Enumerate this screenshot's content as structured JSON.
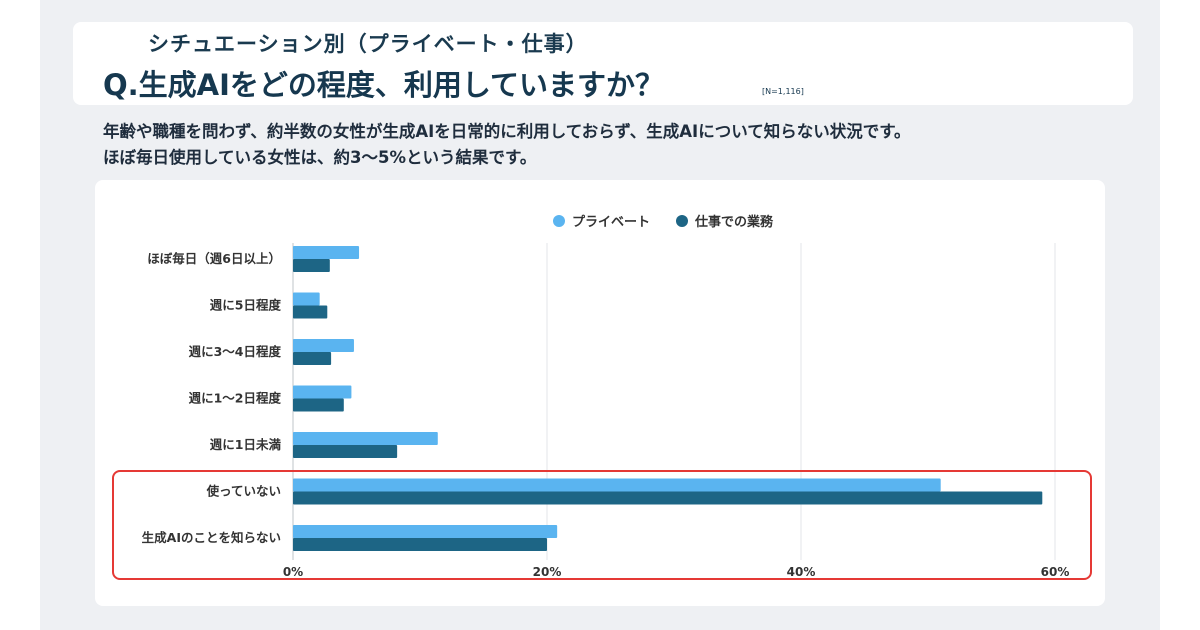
{
  "header": {
    "subtitle": "シチュエーション別（プライベート・仕事）",
    "question": "Q.生成AIをどの程度、利用していますか？",
    "sample_note": "[N=1,116]"
  },
  "description": {
    "line1": "年齢や職種を問わず、約半数の女性が生成AIを日常的に利用しておらず、生成AIについて知らない状況です。",
    "line2": "ほぼ毎日使用している女性は、約3〜5%という結果です。"
  },
  "colors": {
    "private": "#5ab4f0",
    "work": "#1d6585",
    "highlight": "#e53935",
    "grid": "#e3e6ea"
  },
  "chart_data": {
    "type": "bar",
    "orientation": "horizontal",
    "categories": [
      "ほぼ毎日（週6日以上）",
      "週に5日程度",
      "週に3～4日程度",
      "週に1～2日程度",
      "週に1日未満",
      "使っていない",
      "生成AIのことを知らない"
    ],
    "series": [
      {
        "name": "プライベート",
        "values": [
          5.2,
          2.1,
          4.8,
          4.6,
          11.4,
          51.0,
          20.8
        ]
      },
      {
        "name": "仕事での業務",
        "values": [
          2.9,
          2.7,
          3.0,
          4.0,
          8.2,
          59.0,
          20.0
        ]
      }
    ],
    "xlim": [
      0,
      60
    ],
    "xticks": [
      "0%",
      "20%",
      "40%",
      "60%"
    ],
    "highlighted_categories": [
      "使っていない",
      "生成AIのことを知らない"
    ],
    "legend_position": "top-center"
  }
}
